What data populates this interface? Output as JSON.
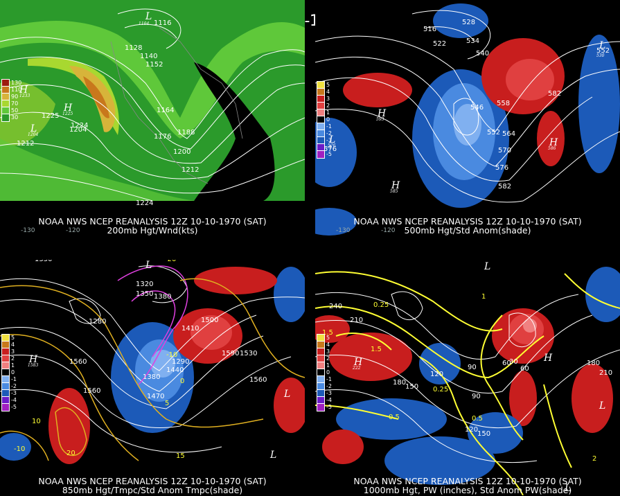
{
  "title": "12Z 10-10-1970 (SAT)",
  "panels": [
    {
      "caption_line1": "NOAA NWS NCEP REANALYSIS 12Z 10-10-1970 (SAT)",
      "caption_line2": "200mb Hgt/Wnd(kts)",
      "legend": [
        {
          "label": "130",
          "color": "#9c1b10"
        },
        {
          "label": "110",
          "color": "#c8781c"
        },
        {
          "label": "90",
          "color": "#d7b43a"
        },
        {
          "label": "70",
          "color": "#a8d830"
        },
        {
          "label": "50",
          "color": "#5fc83a"
        },
        {
          "label": "30",
          "color": "#2b9a2b"
        }
      ],
      "contour_labels": [
        "1116",
        "1128",
        "1140",
        "1152",
        "1164",
        "1176",
        "1188",
        "1200",
        "1212",
        "1224",
        "1224",
        "1212",
        "1204",
        "1225"
      ],
      "lon_ticks": [
        "-130",
        "-120"
      ]
    },
    {
      "caption_line1": "NOAA NWS NCEP REANALYSIS 12Z 10-10-1970 (SAT)",
      "caption_line2": "500mb Hgt/Std Anom(shade)",
      "legend": [
        {
          "label": "5",
          "color": "#f0e040"
        },
        {
          "label": "4",
          "color": "#c8781c"
        },
        {
          "label": "3",
          "color": "#c81e1e"
        },
        {
          "label": "2",
          "color": "#e04040"
        },
        {
          "label": "1",
          "color": "#f08080"
        },
        {
          "label": "0",
          "color": "#000000"
        },
        {
          "label": "-1",
          "color": "#80b0f0"
        },
        {
          "label": "-2",
          "color": "#4a8ae0"
        },
        {
          "label": "-3",
          "color": "#1c5ab8"
        },
        {
          "label": "-4",
          "color": "#6a1cc8"
        },
        {
          "label": "-5",
          "color": "#a020c0"
        }
      ],
      "contour_labels": [
        "516",
        "522",
        "528",
        "534",
        "540",
        "546",
        "552",
        "558",
        "564",
        "570",
        "576",
        "582",
        "582",
        "552",
        "576"
      ],
      "lon_ticks": [
        "-130",
        "-120"
      ]
    },
    {
      "caption_line1": "NOAA NWS NCEP REANALYSIS 12Z 10-10-1970 (SAT)",
      "caption_line2": "850mb Hgt/Tmpc/Std Anom Tmpc(shade)",
      "legend": [
        {
          "label": "5",
          "color": "#f0e040"
        },
        {
          "label": "4",
          "color": "#c8781c"
        },
        {
          "label": "3",
          "color": "#c81e1e"
        },
        {
          "label": "2",
          "color": "#e04040"
        },
        {
          "label": "1",
          "color": "#f08080"
        },
        {
          "label": "0",
          "color": "#000000"
        },
        {
          "label": "-1",
          "color": "#80b0f0"
        },
        {
          "label": "-2",
          "color": "#4a8ae0"
        },
        {
          "label": "-3",
          "color": "#1c5ab8"
        },
        {
          "label": "-4",
          "color": "#6a1cc8"
        },
        {
          "label": "-5",
          "color": "#a020c0"
        }
      ],
      "contour_labels": [
        "1350",
        "1320",
        "1350",
        "1380",
        "1410",
        "1440",
        "1470",
        "1500",
        "1530",
        "1560",
        "1560",
        "1560",
        "1590",
        "1380",
        "1290",
        "1280"
      ],
      "temp_labels": [
        "-20",
        "-10",
        "0",
        "5",
        "10",
        "15",
        "20",
        "-10"
      ]
    },
    {
      "caption_line1": "NOAA NWS NCEP REANALYSIS 12Z 10-10-1970 (SAT)",
      "caption_line2": "1000mb Hgt, PW (inches), Std Anom PW(shade)",
      "legend": [
        {
          "label": "5",
          "color": "#f0e040"
        },
        {
          "label": "4",
          "color": "#c8781c"
        },
        {
          "label": "3",
          "color": "#c81e1e"
        },
        {
          "label": "2",
          "color": "#e04040"
        },
        {
          "label": "1",
          "color": "#f08080"
        },
        {
          "label": "0",
          "color": "#000000"
        },
        {
          "label": "-1",
          "color": "#80b0f0"
        },
        {
          "label": "-2",
          "color": "#4a8ae0"
        },
        {
          "label": "-3",
          "color": "#1c5ab8"
        },
        {
          "label": "-4",
          "color": "#6a1cc8"
        },
        {
          "label": "-5",
          "color": "#a020c0"
        }
      ],
      "contour_labels": [
        "240",
        "210",
        "180",
        "150",
        "120",
        "90",
        "60",
        "30",
        "60",
        "90",
        "120",
        "150",
        "180",
        "210"
      ],
      "pw_labels": [
        "0.25",
        "0.5",
        "1",
        "1.5",
        "2",
        "0.25",
        "0.5",
        "1.5"
      ]
    }
  ]
}
